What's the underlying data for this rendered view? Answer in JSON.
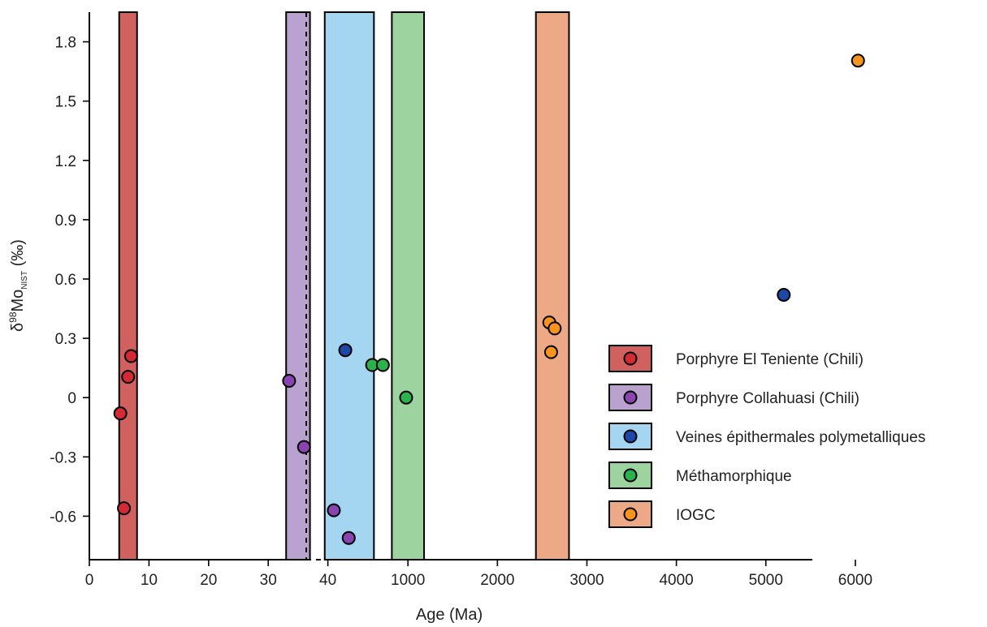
{
  "chart_data": {
    "type": "scatter",
    "title": "",
    "xlabel": "Age (Ma)",
    "ylabel": "δ98MoNIST (‰)",
    "ylabel_parts": {
      "delta": "δ",
      "sup": "98",
      "main": "Mo",
      "sub": "NIST",
      "unit": " (‰)"
    },
    "ylim": [
      -0.82,
      1.95
    ],
    "yticks": [
      -0.6,
      -0.3,
      0,
      0.3,
      0.6,
      0.9,
      1.2,
      1.5,
      1.8
    ],
    "ytick_labels": [
      "-0.6",
      "-0.3",
      "0",
      "0.3",
      "0.6",
      "0.9",
      "1.2",
      "1.5",
      "1.8"
    ],
    "x_segments": [
      {
        "xlim": [
          0,
          50
        ],
        "ticks": [
          0,
          10,
          20,
          30,
          40
        ],
        "tick_labels": [
          "0",
          "10",
          "20",
          "30",
          "40"
        ]
      },
      {
        "xlim": [
          -200,
          6500
        ],
        "ticks": [
          1000,
          2000,
          3000,
          4000,
          5000,
          6000
        ],
        "tick_labels": [
          "1000",
          "2000",
          "3000",
          "4000",
          "5000",
          "6000"
        ]
      }
    ],
    "legend_position": "bottom-right",
    "series": [
      {
        "name": "Porphyre El Teniente (Chili)",
        "segment": 0,
        "marker_color": "#d42a34",
        "band_color": "#d0615e",
        "band": [
          5,
          8
        ],
        "points": [
          [
            7,
            0.21
          ],
          [
            6.5,
            0.105
          ],
          [
            5.2,
            -0.08
          ],
          [
            5.8,
            -0.56
          ]
        ]
      },
      {
        "name": "Porphyre Collahuasi (Chili)",
        "segment": 0,
        "marker_color": "#8a44b0",
        "band_color": "#b9a2d0",
        "band": [
          33,
          37
        ],
        "points": [
          [
            33.5,
            0.085
          ],
          [
            36,
            -0.25
          ],
          [
            41,
            -0.57
          ],
          [
            43.5,
            -0.71
          ]
        ]
      },
      {
        "name": "Veines épithermales polymetalliques",
        "segment": 1,
        "marker_color": "#1d48a8",
        "band_color": "#a4d6f2",
        "band": [
          70,
          620
        ],
        "points": [
          [
            300,
            0.24
          ],
          [
            5200,
            0.52
          ]
        ]
      },
      {
        "name": "Méthamorphique",
        "segment": 1,
        "marker_color": "#2db14d",
        "band_color": "#9dd39f",
        "band": [
          820,
          1180
        ],
        "points": [
          [
            600,
            0.165
          ],
          [
            720,
            0.165
          ],
          [
            980,
            0
          ]
        ]
      },
      {
        "name": "IOGC",
        "segment": 1,
        "marker_color": "#f7941d",
        "band_color": "#eda886",
        "band": [
          2430,
          2800
        ],
        "points": [
          [
            2580,
            0.38
          ],
          [
            2640,
            0.35
          ],
          [
            2600,
            0.23
          ],
          [
            6030,
            1.705
          ]
        ]
      }
    ]
  }
}
